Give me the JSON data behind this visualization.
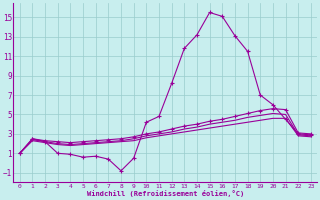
{
  "xlabel": "Windchill (Refroidissement éolien,°C)",
  "bg_color": "#c8eeee",
  "line_color": "#990099",
  "grid_color": "#99cccc",
  "xlim": [
    -0.5,
    23.5
  ],
  "ylim": [
    -2.0,
    16.5
  ],
  "xticks": [
    0,
    1,
    2,
    3,
    4,
    5,
    6,
    7,
    8,
    9,
    10,
    11,
    12,
    13,
    14,
    15,
    16,
    17,
    18,
    19,
    20,
    21,
    22,
    23
  ],
  "yticks": [
    -1,
    1,
    3,
    5,
    7,
    9,
    11,
    13,
    15
  ],
  "x": [
    0,
    1,
    2,
    3,
    4,
    5,
    6,
    7,
    8,
    9,
    10,
    11,
    12,
    13,
    14,
    15,
    16,
    17,
    18,
    19,
    20,
    21,
    22,
    23
  ],
  "line1": [
    1.0,
    2.5,
    2.2,
    1.0,
    0.9,
    0.6,
    0.7,
    0.4,
    -0.8,
    0.5,
    4.2,
    4.8,
    8.2,
    11.8,
    13.2,
    15.5,
    15.1,
    13.1,
    11.5,
    7.0,
    6.0,
    4.5,
    3.0,
    2.9
  ],
  "line2": [
    1.0,
    2.5,
    2.3,
    2.2,
    2.1,
    2.2,
    2.3,
    2.4,
    2.5,
    2.7,
    3.0,
    3.2,
    3.5,
    3.8,
    4.0,
    4.3,
    4.5,
    4.8,
    5.1,
    5.4,
    5.6,
    5.5,
    3.1,
    3.0
  ],
  "line3": [
    1.0,
    2.4,
    2.2,
    2.0,
    1.9,
    2.0,
    2.1,
    2.2,
    2.3,
    2.5,
    2.8,
    3.0,
    3.2,
    3.5,
    3.7,
    4.0,
    4.2,
    4.4,
    4.7,
    4.9,
    5.1,
    5.0,
    2.9,
    2.8
  ],
  "line4": [
    1.0,
    2.3,
    2.1,
    1.9,
    1.8,
    1.9,
    2.0,
    2.1,
    2.2,
    2.3,
    2.6,
    2.8,
    3.0,
    3.2,
    3.4,
    3.6,
    3.8,
    4.0,
    4.2,
    4.4,
    4.6,
    4.6,
    2.8,
    2.7
  ]
}
